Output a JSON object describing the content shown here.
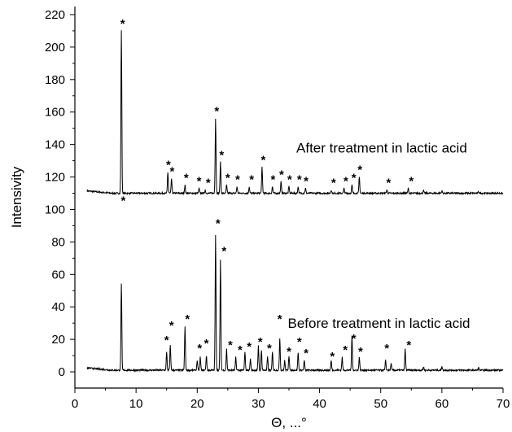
{
  "chart_data": {
    "type": "line",
    "title": "",
    "xlabel": "Θ, ...°",
    "ylabel": "Intensivity",
    "xlim": [
      0,
      70
    ],
    "ylim": [
      -10,
      225
    ],
    "xticks": [
      0,
      10,
      20,
      30,
      40,
      50,
      60,
      70
    ],
    "yticks": [
      0,
      20,
      40,
      60,
      80,
      100,
      120,
      140,
      160,
      180,
      200,
      220
    ],
    "grid": false,
    "legend": "none",
    "line_color": "#000000",
    "peak_marker": "*",
    "series": [
      {
        "baseline": 110,
        "annotation": "After treatment in lactic acid",
        "peaks": [
          [
            7.6,
            210
          ],
          [
            15.2,
            123
          ],
          [
            15.8,
            119
          ],
          [
            18.0,
            115
          ],
          [
            20.3,
            113
          ],
          [
            21.3,
            112
          ],
          [
            23.0,
            156
          ],
          [
            23.8,
            129
          ],
          [
            24.8,
            115
          ],
          [
            26.5,
            114
          ],
          [
            28.5,
            114
          ],
          [
            30.6,
            126
          ],
          [
            32.3,
            114
          ],
          [
            33.7,
            117
          ],
          [
            35.0,
            114
          ],
          [
            36.5,
            114
          ],
          [
            37.7,
            113
          ],
          [
            41.9,
            112
          ],
          [
            44.0,
            113
          ],
          [
            45.3,
            115
          ],
          [
            46.5,
            120
          ],
          [
            51.0,
            112
          ],
          [
            54.5,
            113
          ],
          [
            57.0,
            111.5
          ],
          [
            60.0,
            111.5
          ],
          [
            66.0,
            111
          ]
        ],
        "stars_x": [
          7.8,
          15.3,
          15.9,
          18.2,
          20.3,
          21.8,
          23.2,
          24.0,
          25.0,
          26.6,
          28.9,
          30.8,
          32.4,
          33.8,
          35.1,
          36.7,
          37.8,
          42.3,
          44.3,
          45.6,
          46.6,
          51.3,
          55.0
        ]
      },
      {
        "baseline": 1,
        "annotation": "Before treatment in lactic acid",
        "peaks": [
          [
            7.6,
            54
          ],
          [
            15.0,
            12
          ],
          [
            15.6,
            16
          ],
          [
            18.0,
            28
          ],
          [
            20.0,
            7
          ],
          [
            20.5,
            9
          ],
          [
            21.5,
            10
          ],
          [
            23.0,
            84
          ],
          [
            23.8,
            69
          ],
          [
            24.8,
            14
          ],
          [
            26.3,
            9
          ],
          [
            27.8,
            12
          ],
          [
            28.7,
            8
          ],
          [
            30.0,
            16
          ],
          [
            30.5,
            13
          ],
          [
            31.5,
            9
          ],
          [
            32.3,
            12
          ],
          [
            33.5,
            21
          ],
          [
            34.3,
            7
          ],
          [
            35.0,
            10
          ],
          [
            36.5,
            12
          ],
          [
            37.5,
            7
          ],
          [
            41.9,
            7
          ],
          [
            43.7,
            9
          ],
          [
            45.3,
            22
          ],
          [
            46.5,
            9
          ],
          [
            50.8,
            7
          ],
          [
            51.7,
            5
          ],
          [
            54.0,
            14
          ],
          [
            57.0,
            3
          ],
          [
            60.0,
            3.5
          ],
          [
            66.0,
            2.5
          ]
        ],
        "stars_x": [
          7.9,
          15.0,
          15.8,
          18.4,
          20.4,
          21.5,
          23.4,
          24.4,
          25.4,
          27.0,
          28.5,
          30.3,
          31.8,
          33.5,
          35.0,
          36.7,
          37.8,
          42.1,
          44.2,
          45.6,
          46.7,
          51.0,
          54.6
        ],
        "stars_y": [
          101,
          15,
          24,
          28,
          10,
          13,
          87,
          70,
          12,
          9,
          11,
          14,
          10,
          28,
          8,
          14,
          7,
          5,
          9,
          16,
          8,
          10,
          12
        ]
      }
    ]
  }
}
